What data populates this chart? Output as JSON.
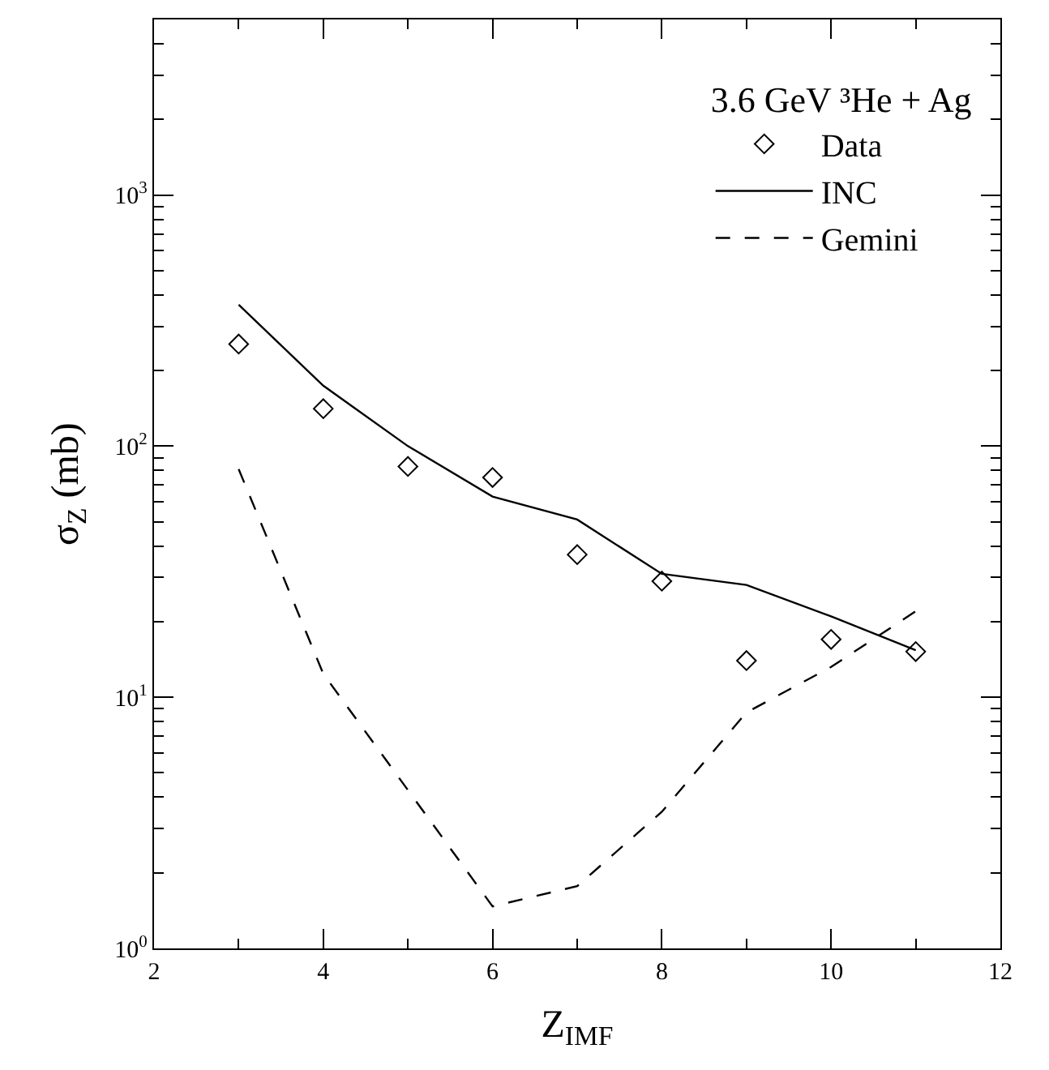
{
  "chart_data": {
    "type": "line",
    "xlabel": "Z$_{IMF}$",
    "ylabel": "σ$_{Z}$ (mb)",
    "legend_title": "3.6 GeV ³He + Ag",
    "x": [
      3,
      4,
      5,
      6,
      7,
      8,
      9,
      10,
      11
    ],
    "series": [
      {
        "name": "Data",
        "type": "scatter",
        "marker": "diamond",
        "color": "#000000",
        "values": [
          255,
          141,
          83,
          75,
          37,
          29,
          14,
          17,
          15.2
        ]
      },
      {
        "name": "INC",
        "line_style": "solid",
        "color": "#000000",
        "values": [
          366,
          174,
          100,
          63,
          51,
          31,
          28,
          21,
          15.4
        ]
      },
      {
        "name": "Gemini",
        "line_style": "dashed",
        "color": "#000000",
        "x": [
          3,
          4,
          6,
          7,
          8,
          9,
          10,
          11
        ],
        "values": [
          81,
          12.4,
          1.47,
          1.77,
          3.5,
          8.7,
          13.2,
          22
        ]
      }
    ],
    "log": "y",
    "xlim": [
      2,
      12
    ],
    "ylim": [
      1,
      5000
    ],
    "xticks": [
      2,
      4,
      6,
      8,
      10,
      12
    ],
    "yticks": [
      {
        "value": 1,
        "label": "10$^{0}$"
      },
      {
        "value": 10,
        "label": "10$^{1}$"
      },
      {
        "value": 100,
        "label": "10$^{2}$"
      },
      {
        "value": 1000,
        "label": "10$^{3}$"
      }
    ],
    "legend": "top right"
  }
}
